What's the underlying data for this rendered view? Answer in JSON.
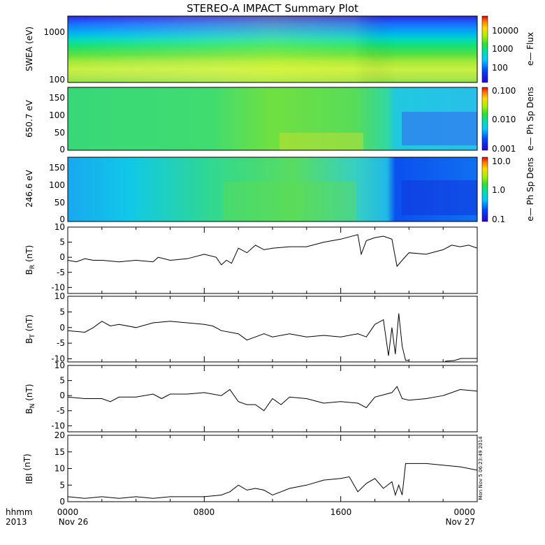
{
  "chart_data": {
    "title": "STEREO-A IMPACT Summary Plot",
    "type": "line",
    "xaxis": {
      "hour_ticks": [
        "0000",
        "0800",
        "1600",
        "0000"
      ],
      "date_ticks": [
        "Nov 26",
        "",
        "",
        "Nov 27"
      ],
      "corner_label_1": "hhmm",
      "corner_label_2": "2013",
      "range_hours": [
        0,
        24
      ]
    },
    "spectrograms": [
      {
        "ylabel": "SWEA (eV)",
        "ytick_labels": [
          "1000",
          "100"
        ],
        "scale": "log",
        "colorbar_label": "e— Flux",
        "colorbar_ticks": [
          "10000",
          "1000",
          "100"
        ]
      },
      {
        "ylabel": "650.7 eV",
        "ytick_labels": [
          "150",
          "100",
          "50",
          "0"
        ],
        "ylim": [
          0,
          180
        ],
        "colorbar_label": "e— Ph Sp Dens",
        "colorbar_ticks": [
          "0.100",
          "0.010",
          "0.001"
        ]
      },
      {
        "ylabel": "246.6 eV",
        "ytick_labels": [
          "150",
          "100",
          "50",
          "0"
        ],
        "ylim": [
          0,
          180
        ],
        "colorbar_label": "e— Ph Sp Dens",
        "colorbar_ticks": [
          "10.0",
          "1.0",
          "0.1"
        ]
      }
    ],
    "series": [
      {
        "ylabel": "B",
        "ysub": "R",
        "yunit": " (nT)",
        "ylim": [
          -12,
          10
        ],
        "ytick_labels": [
          "10",
          "5",
          "0",
          "-5",
          "-10"
        ],
        "x": [
          0,
          0.5,
          1,
          1.5,
          2,
          3,
          4,
          5,
          5.3,
          6,
          7,
          8,
          8.7,
          9,
          9.3,
          9.6,
          10,
          10.5,
          11,
          11.5,
          12,
          13,
          14,
          15,
          16,
          17,
          17.2,
          17.5,
          18,
          18.5,
          19,
          19.3,
          19.6,
          20,
          21,
          22,
          22.5,
          23,
          23.5,
          24
        ],
        "y": [
          -1,
          -1.5,
          -0.5,
          -1,
          -1,
          -1.5,
          -1,
          -1.5,
          0,
          -1,
          -0.5,
          1,
          0,
          -2.5,
          -1,
          -2,
          3,
          1.5,
          4,
          2.5,
          3,
          3.5,
          3.5,
          5,
          6,
          7.5,
          1,
          5.5,
          6.5,
          7,
          6,
          -3,
          -1,
          1.5,
          1,
          2.5,
          4,
          3.5,
          4,
          3
        ]
      },
      {
        "ylabel": "B",
        "ysub": "T",
        "yunit": " (nT)",
        "ylim": [
          -11,
          10
        ],
        "ytick_labels": [
          "10",
          "5",
          "0",
          "-5",
          "-10"
        ],
        "x": [
          0,
          1,
          1.5,
          2,
          2.5,
          3,
          4,
          5,
          6,
          7,
          8,
          8.5,
          9,
          10,
          10.5,
          11,
          11.5,
          12,
          13,
          14,
          15,
          16,
          17,
          17.5,
          18,
          18.5,
          18.8,
          19,
          19.2,
          19.4,
          19.6,
          19.8,
          20
        ],
        "y": [
          -1,
          -1.5,
          0,
          2,
          0.5,
          1,
          0,
          1.5,
          2,
          1.5,
          1,
          0.5,
          -1,
          -2,
          -4,
          -3,
          -2,
          -3,
          -2,
          -3,
          -2.5,
          -3,
          -2,
          -3,
          1,
          2.5,
          -9,
          0,
          -8.5,
          4.5,
          -6,
          -10.5,
          -10.5
        ]
      },
      {
        "ylabel": "B",
        "ysub": "N",
        "yunit": " (nT)",
        "ylim": [
          -12,
          10
        ],
        "ytick_labels": [
          "10",
          "5",
          "0",
          "-5",
          "-10"
        ],
        "x": [
          0,
          1,
          2,
          2.5,
          3,
          4,
          5,
          5.5,
          6,
          7,
          8,
          9,
          9.5,
          10,
          10.5,
          11,
          11.5,
          12,
          12.5,
          13,
          14,
          15,
          16,
          17,
          17.5,
          18,
          19,
          19.3,
          19.6,
          20,
          21,
          22,
          23,
          24
        ],
        "y": [
          -0.5,
          -1,
          -1,
          -2,
          -0.5,
          -0.5,
          0.5,
          -1,
          0.5,
          0.5,
          1,
          0,
          2,
          -2,
          -3,
          -3,
          -5,
          -1,
          -3,
          -0.5,
          -1,
          -2.5,
          -2,
          -2.5,
          -4,
          -0.5,
          1,
          3,
          -1,
          -1.5,
          -1,
          0,
          2,
          1.5
        ]
      },
      {
        "ylabel": "IBI",
        "ysub": "",
        "yunit": " (nT)",
        "ylim": [
          0,
          20
        ],
        "ytick_labels": [
          "20",
          "15",
          "10",
          "5",
          "0"
        ],
        "x": [
          0,
          1,
          2,
          3,
          4,
          5,
          6,
          7,
          8,
          9,
          9.5,
          10,
          10.5,
          11,
          11.5,
          12,
          12.5,
          13,
          14,
          15,
          16,
          16.5,
          17,
          17.5,
          18,
          18.5,
          19,
          19.2,
          19.4,
          19.6,
          19.8,
          20,
          21,
          22,
          23,
          24
        ],
        "y": [
          1.5,
          1,
          1.5,
          1,
          1.5,
          1,
          1.5,
          1.5,
          1.5,
          2,
          3,
          5,
          3.5,
          4,
          3.5,
          2,
          3,
          4,
          5,
          6.5,
          7,
          7.5,
          3,
          5.5,
          7,
          4,
          6,
          2,
          5,
          2,
          11.5,
          11.5,
          11.5,
          11,
          10.5,
          9.5
        ]
      }
    ],
    "side_stamp": "Mon Nov  5 06:23:49 2014"
  }
}
